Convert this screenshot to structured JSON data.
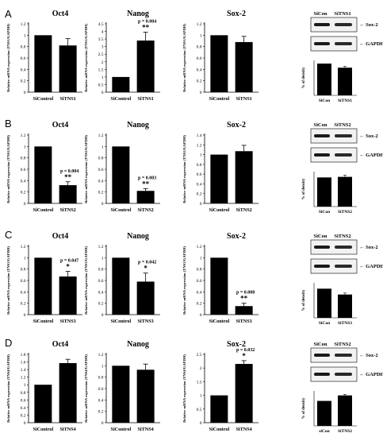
{
  "panels": [
    {
      "letter": "A",
      "charts": [
        {
          "type": "bar",
          "title": "Oct4",
          "ylabel": "Relative mRNA expression (TNS1/GAPDH)",
          "categories": [
            "SiControl",
            "SiTNS1"
          ],
          "values": [
            1.0,
            0.82
          ],
          "errors": [
            0,
            0.12
          ],
          "ylim": [
            0,
            1.2
          ],
          "yticks": [
            "0",
            "0.2",
            "0.4",
            "0.6",
            "0.8",
            "1",
            "1.2"
          ],
          "pvalue": "",
          "stars": ""
        },
        {
          "type": "bar",
          "title": "Nanog",
          "ylabel": "Relative mRNA expression (TNS1/GAPDH)",
          "categories": [
            "SiControl",
            "SiTNS1"
          ],
          "values": [
            1.0,
            3.4
          ],
          "errors": [
            0,
            0.55
          ],
          "ylim": [
            0,
            4.5
          ],
          "yticks": [
            "0",
            "0.5",
            "1",
            "1.5",
            "2",
            "2.5",
            "3",
            "3.5",
            "4",
            "4.5"
          ],
          "pvalue": "p = 0.004",
          "stars": "**"
        },
        {
          "type": "bar",
          "title": "Sox-2",
          "ylabel": "Relative mRNA expression (TNS1/GAPDH)",
          "categories": [
            "SiControl",
            "SiTNS1"
          ],
          "values": [
            1.0,
            0.88
          ],
          "errors": [
            0,
            0.1
          ],
          "ylim": [
            0,
            1.2
          ],
          "yticks": [
            "0",
            "0.2",
            "0.4",
            "0.6",
            "0.8",
            "1",
            "1.2"
          ],
          "pvalue": "",
          "stars": ""
        },
        {
          "type": "bar",
          "title": "",
          "ylabel": "% of density",
          "categories": [
            "SiCon",
            "SiTNS1"
          ],
          "values": [
            1.0,
            0.87
          ],
          "errors": [
            0,
            0.04
          ],
          "ylim": [
            0,
            1.1
          ],
          "yticks": [],
          "pvalue": "",
          "stars": ""
        }
      ],
      "blot": {
        "lanes": [
          "SiCon",
          "SiTNS1"
        ],
        "bands": [
          "Sox-2",
          "GAPDH"
        ]
      }
    },
    {
      "letter": "B",
      "charts": [
        {
          "type": "bar",
          "title": "Oct4",
          "ylabel": "Relative mRNA expression (TNS2/GAPDH)",
          "categories": [
            "SiControl",
            "SiTNS2"
          ],
          "values": [
            1.0,
            0.32
          ],
          "errors": [
            0,
            0.06
          ],
          "ylim": [
            0,
            1.2
          ],
          "yticks": [
            "0",
            "0.2",
            "0.4",
            "0.6",
            "0.8",
            "1",
            "1.2"
          ],
          "pvalue": "p = 0.004",
          "stars": "**"
        },
        {
          "type": "bar",
          "title": "Nanog",
          "ylabel": "Relative mRNA expression (TNS2/GAPDH)",
          "categories": [
            "SiControl",
            "SiTNS2"
          ],
          "values": [
            1.0,
            0.22
          ],
          "errors": [
            0,
            0.04
          ],
          "ylim": [
            0,
            1.2
          ],
          "yticks": [
            "0",
            "0.2",
            "0.4",
            "0.6",
            "0.8",
            "1",
            "1.2"
          ],
          "pvalue": "p = 0.003",
          "stars": "**"
        },
        {
          "type": "bar",
          "title": "Sox-2",
          "ylabel": "Relative mRNA expression (TNS2/GAPDH)",
          "categories": [
            "SiControl",
            "SiTNS2"
          ],
          "values": [
            1.0,
            1.07
          ],
          "errors": [
            0,
            0.12
          ],
          "ylim": [
            0,
            1.4
          ],
          "yticks": [
            "0",
            "0.2",
            "0.4",
            "0.6",
            "0.8",
            "1",
            "1.2",
            "1.4"
          ],
          "pvalue": "",
          "stars": ""
        },
        {
          "type": "bar",
          "title": "",
          "ylabel": "% of density",
          "categories": [
            "SiCon",
            "SiTNS2"
          ],
          "values": [
            1.0,
            1.02
          ],
          "errors": [
            0,
            0.06
          ],
          "ylim": [
            0,
            1.2
          ],
          "yticks": [],
          "pvalue": "",
          "stars": ""
        }
      ],
      "blot": {
        "lanes": [
          "SiCon",
          "SiTNS2"
        ],
        "bands": [
          "Sox-2",
          "GAPDH"
        ]
      }
    },
    {
      "letter": "C",
      "charts": [
        {
          "type": "bar",
          "title": "Oct4",
          "ylabel": "Relative mRNA expression (TNS3/GAPDH)",
          "categories": [
            "SiControl",
            "SiTNS3"
          ],
          "values": [
            1.0,
            0.67
          ],
          "errors": [
            0,
            0.09
          ],
          "ylim": [
            0,
            1.2
          ],
          "yticks": [
            "0",
            "0.2",
            "0.4",
            "0.6",
            "0.8",
            "1",
            "1.2"
          ],
          "pvalue": "p = 0.047",
          "stars": "*"
        },
        {
          "type": "bar",
          "title": "Nanog",
          "ylabel": "Relative mRNA expression (TNS3/GAPDH)",
          "categories": [
            "SiControl",
            "SiTNS3"
          ],
          "values": [
            1.0,
            0.58
          ],
          "errors": [
            0,
            0.15
          ],
          "ylim": [
            0,
            1.2
          ],
          "yticks": [
            "0",
            "0.2",
            "0.4",
            "0.6",
            "0.8",
            "1",
            "1.2"
          ],
          "pvalue": "p = 0.042",
          "stars": "*"
        },
        {
          "type": "bar",
          "title": "Sox-2",
          "ylabel": "Relative mRNA expression (TNS3/GAPDH)",
          "categories": [
            "SiControl",
            "SiTNS3"
          ],
          "values": [
            1.0,
            0.15
          ],
          "errors": [
            0,
            0.05
          ],
          "ylim": [
            0,
            1.2
          ],
          "yticks": [
            "0",
            "0.2",
            "0.4",
            "0.6",
            "0.8",
            "1",
            "1.2"
          ],
          "pvalue": "p = 0.008",
          "stars": "**"
        },
        {
          "type": "bar",
          "title": "",
          "ylabel": "% of density",
          "categories": [
            "SiCon",
            "SiTNS3"
          ],
          "values": [
            1.0,
            0.8
          ],
          "errors": [
            0,
            0.05
          ],
          "ylim": [
            0,
            1.2
          ],
          "yticks": [],
          "pvalue": "",
          "stars": ""
        }
      ],
      "blot": {
        "lanes": [
          "SiCon",
          "SiTNS2"
        ],
        "bands": [
          "Sox-2",
          "GAPDH"
        ]
      }
    },
    {
      "letter": "D",
      "charts": [
        {
          "type": "bar",
          "title": "Oct4",
          "ylabel": "Relative mRNA expression (TNS4/GAPDH)",
          "categories": [
            "SiControl",
            "SiTNS4"
          ],
          "values": [
            1.0,
            1.57
          ],
          "errors": [
            0,
            0.1
          ],
          "ylim": [
            0,
            1.8
          ],
          "yticks": [
            "0",
            "0.2",
            "0.4",
            "0.6",
            "0.8",
            "1",
            "1.2",
            "1.4",
            "1.6",
            "1.8"
          ],
          "pvalue": "",
          "stars": ""
        },
        {
          "type": "bar",
          "title": "Nanog",
          "ylabel": "Relative mRNA expression (TNS4/GAPDH)",
          "categories": [
            "SiControl",
            "SiTNS4"
          ],
          "values": [
            1.0,
            0.93
          ],
          "errors": [
            0,
            0.1
          ],
          "ylim": [
            0,
            1.2
          ],
          "yticks": [
            "0",
            "0.2",
            "0.4",
            "0.6",
            "0.8",
            "1",
            "1.2"
          ],
          "pvalue": "",
          "stars": ""
        },
        {
          "type": "bar",
          "title": "Sox-2",
          "ylabel": "Relative mRNA expression (TNS4/GAPDH)",
          "categories": [
            "SiControl",
            "SiTNS4"
          ],
          "values": [
            1.0,
            2.15
          ],
          "errors": [
            0,
            0.12
          ],
          "ylim": [
            0,
            2.5
          ],
          "yticks": [
            "0",
            "0.5",
            "1",
            "1.5",
            "2",
            "2.5"
          ],
          "pvalue": "p = 0.032",
          "stars": "*"
        },
        {
          "type": "bar",
          "title": "",
          "ylabel": "% of density",
          "categories": [
            "siCon",
            "SiTNS2"
          ],
          "values": [
            1.0,
            1.22
          ],
          "errors": [
            0,
            0.04
          ],
          "ylim": [
            0,
            1.4
          ],
          "yticks": [],
          "pvalue": "",
          "stars": ""
        }
      ],
      "blot": {
        "lanes": [
          "SiCon",
          "SiTNS2"
        ],
        "bands": [
          "Sox-2",
          "GAPDH"
        ]
      }
    }
  ],
  "chart_data": [
    {
      "type": "bar",
      "title": "Oct4",
      "ylabel": "Relative mRNA expression (TNS1/GAPDH)",
      "categories": [
        "SiControl",
        "SiTNS1"
      ],
      "values": [
        1.0,
        0.82
      ],
      "ylim": [
        0,
        1.2
      ]
    },
    {
      "type": "bar",
      "title": "Nanog",
      "ylabel": "Relative mRNA expression (TNS1/GAPDH)",
      "categories": [
        "SiControl",
        "SiTNS1"
      ],
      "values": [
        1.0,
        3.4
      ],
      "ylim": [
        0,
        4.5
      ],
      "annotation": "p = 0.004 **"
    },
    {
      "type": "bar",
      "title": "Sox-2",
      "ylabel": "Relative mRNA expression (TNS1/GAPDH)",
      "categories": [
        "SiControl",
        "SiTNS1"
      ],
      "values": [
        1.0,
        0.88
      ],
      "ylim": [
        0,
        1.2
      ]
    },
    {
      "type": "bar",
      "title": "",
      "ylabel": "% of density",
      "categories": [
        "SiCon",
        "SiTNS1"
      ],
      "values": [
        1.0,
        0.87
      ]
    },
    {
      "type": "bar",
      "title": "Oct4",
      "ylabel": "Relative mRNA expression (TNS2/GAPDH)",
      "categories": [
        "SiControl",
        "SiTNS2"
      ],
      "values": [
        1.0,
        0.32
      ],
      "ylim": [
        0,
        1.2
      ],
      "annotation": "p = 0.004 **"
    },
    {
      "type": "bar",
      "title": "Nanog",
      "ylabel": "Relative mRNA expression (TNS2/GAPDH)",
      "categories": [
        "SiControl",
        "SiTNS2"
      ],
      "values": [
        1.0,
        0.22
      ],
      "ylim": [
        0,
        1.2
      ],
      "annotation": "p = 0.003 **"
    },
    {
      "type": "bar",
      "title": "Sox-2",
      "ylabel": "Relative mRNA expression (TNS2/GAPDH)",
      "categories": [
        "SiControl",
        "SiTNS2"
      ],
      "values": [
        1.0,
        1.07
      ],
      "ylim": [
        0,
        1.4
      ]
    },
    {
      "type": "bar",
      "title": "",
      "ylabel": "% of density",
      "categories": [
        "SiCon",
        "SiTNS2"
      ],
      "values": [
        1.0,
        1.02
      ]
    },
    {
      "type": "bar",
      "title": "Oct4",
      "ylabel": "Relative mRNA expression (TNS3/GAPDH)",
      "categories": [
        "SiControl",
        "SiTNS3"
      ],
      "values": [
        1.0,
        0.67
      ],
      "ylim": [
        0,
        1.2
      ],
      "annotation": "p = 0.047 *"
    },
    {
      "type": "bar",
      "title": "Nanog",
      "ylabel": "Relative mRNA expression (TNS3/GAPDH)",
      "categories": [
        "SiControl",
        "SiTNS3"
      ],
      "values": [
        1.0,
        0.58
      ],
      "ylim": [
        0,
        1.2
      ],
      "annotation": "p = 0.042 *"
    },
    {
      "type": "bar",
      "title": "Sox-2",
      "ylabel": "Relative mRNA expression (TNS3/GAPDH)",
      "categories": [
        "SiControl",
        "SiTNS3"
      ],
      "values": [
        1.0,
        0.15
      ],
      "ylim": [
        0,
        1.2
      ],
      "annotation": "p = 0.008 **"
    },
    {
      "type": "bar",
      "title": "",
      "ylabel": "% of density",
      "categories": [
        "SiCon",
        "SiTNS3"
      ],
      "values": [
        1.0,
        0.8
      ]
    },
    {
      "type": "bar",
      "title": "Oct4",
      "ylabel": "Relative mRNA expression (TNS4/GAPDH)",
      "categories": [
        "SiControl",
        "SiTNS4"
      ],
      "values": [
        1.0,
        1.57
      ],
      "ylim": [
        0,
        1.8
      ]
    },
    {
      "type": "bar",
      "title": "Nanog",
      "ylabel": "Relative mRNA expression (TNS4/GAPDH)",
      "categories": [
        "SiControl",
        "SiTNS4"
      ],
      "values": [
        1.0,
        0.93
      ],
      "ylim": [
        0,
        1.2
      ]
    },
    {
      "type": "bar",
      "title": "Sox-2",
      "ylabel": "Relative mRNA expression (TNS4/GAPDH)",
      "categories": [
        "SiControl",
        "SiTNS4"
      ],
      "values": [
        1.0,
        2.15
      ],
      "ylim": [
        0,
        2.5
      ],
      "annotation": "p = 0.032 *"
    },
    {
      "type": "bar",
      "title": "",
      "ylabel": "% of density",
      "categories": [
        "siCon",
        "SiTNS2"
      ],
      "values": [
        1.0,
        1.22
      ]
    }
  ]
}
